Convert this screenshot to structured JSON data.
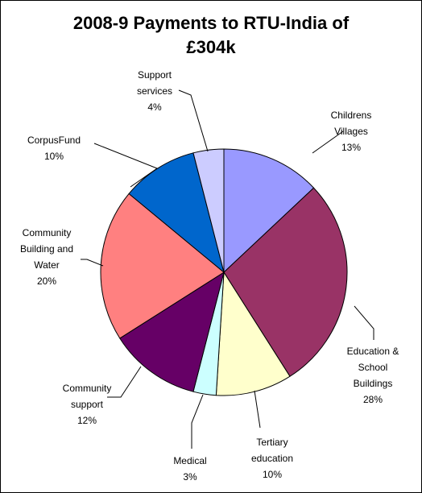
{
  "chart_data": {
    "type": "pie",
    "title_lines": [
      "2008-9 Payments to RTU-India of",
      "£304k"
    ],
    "slices": [
      {
        "name_lines": [
          "Childrens",
          "Villages"
        ],
        "pct_label": "13%",
        "value": 13,
        "color": "#9999FF"
      },
      {
        "name_lines": [
          "Education &",
          "School",
          "Buildings"
        ],
        "pct_label": "28%",
        "value": 28,
        "color": "#993366"
      },
      {
        "name_lines": [
          "Tertiary",
          "education"
        ],
        "pct_label": "10%",
        "value": 10,
        "color": "#FFFFCC"
      },
      {
        "name_lines": [
          "Medical"
        ],
        "pct_label": "3%",
        "value": 3,
        "color": "#CCFFFF"
      },
      {
        "name_lines": [
          "Community",
          "support"
        ],
        "pct_label": "12%",
        "value": 12,
        "color": "#660066"
      },
      {
        "name_lines": [
          "Community",
          "Building and",
          "Water"
        ],
        "pct_label": "20%",
        "value": 20,
        "color": "#FF8080"
      },
      {
        "name_lines": [
          "CorpusFund"
        ],
        "pct_label": "10%",
        "value": 10,
        "color": "#0066CC"
      },
      {
        "name_lines": [
          "Support",
          "services"
        ],
        "pct_label": "4%",
        "value": 4,
        "color": "#CCCCFF"
      }
    ]
  }
}
